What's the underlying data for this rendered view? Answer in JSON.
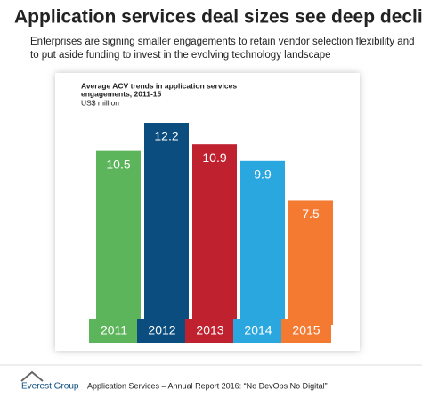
{
  "chart_data": {
    "type": "bar",
    "headline": "Application services deal sizes see deep decline",
    "subtitle_lines": [
      "Enterprises are signing  smaller engagements to retain vendor selection flexibility and",
      "to put aside funding to invest in the evolving technology landscape"
    ],
    "title_lines": [
      "Average ACV trends in application services",
      "engagements, 2011-15"
    ],
    "y_label": "US$ million",
    "categories": [
      "2011",
      "2012",
      "2013",
      "2014",
      "2015"
    ],
    "values": [
      10.5,
      12.2,
      10.9,
      9.9,
      7.5
    ],
    "colors": [
      "#5cb55a",
      "#0b4d7e",
      "#c0212f",
      "#2aa7df",
      "#f47a32"
    ],
    "logo": "Everest Group",
    "source": "Application Services – Annual Report 2016: “No DevOps No Digital”"
  }
}
